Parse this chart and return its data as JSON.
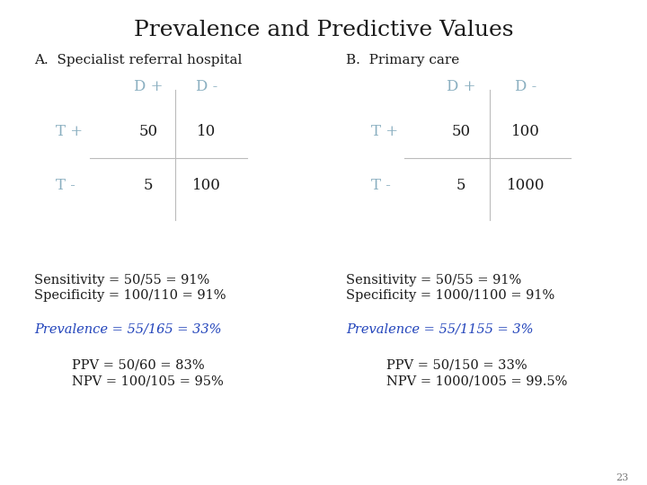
{
  "title": "Prevalence and Predictive Values",
  "title_fontsize": 18,
  "title_color": "#1a1a1a",
  "bg_color": "#ffffff",
  "label_A": "A.  Specialist referral hospital",
  "label_B": "B.  Primary care",
  "section_label_color": "#1a1a1a",
  "section_label_fontsize": 11,
  "dplus_dminus_color": "#8aafc0",
  "tplus_tminus_color": "#8aafc0",
  "cell_value_color": "#1a1a1a",
  "cell_value_fontsize": 12,
  "header_fontsize": 12,
  "row_label_fontsize": 12,
  "sensitivity_color": "#1a1a1a",
  "sensitivity_fontsize": 10.5,
  "prevalence_color": "#2244bb",
  "prevalence_fontsize": 10.5,
  "ppv_npv_color": "#1a1a1a",
  "ppv_npv_fontsize": 10.5,
  "slide_number": "23",
  "slide_number_fontsize": 8,
  "line_color": "#bbbbbb",
  "table_A": {
    "Dplus_header": "D +",
    "Dminus_header": "D -",
    "Tplus_label": "T +",
    "Tminus_label": "T -",
    "tp": "50",
    "fp": "10",
    "fn": "5",
    "tn": "100"
  },
  "table_B": {
    "Dplus_header": "D +",
    "Dminus_header": "D -",
    "Tplus_label": "T +",
    "Tminus_label": "T -",
    "tp": "50",
    "fp": "100",
    "fn": "5",
    "tn": "1000"
  },
  "text_A": {
    "sensitivity": "Sensitivity = 50/55 = 91%",
    "specificity": "Specificity = 100/110 = 91%",
    "prevalence": "Prevalence = 55/165 = 33%",
    "ppv": "PPV = 50/60 = 83%",
    "npv": "NPV = 100/105 = 95%"
  },
  "text_B": {
    "sensitivity": "Sensitivity = 50/55 = 91%",
    "specificity": "Specificity = 1000/1100 = 91%",
    "prevalence": "Prevalence = 55/1155 = 3%",
    "ppv": "PPV = 50/150 = 33%",
    "npv": "NPV = 1000/1005 = 99.5%"
  }
}
